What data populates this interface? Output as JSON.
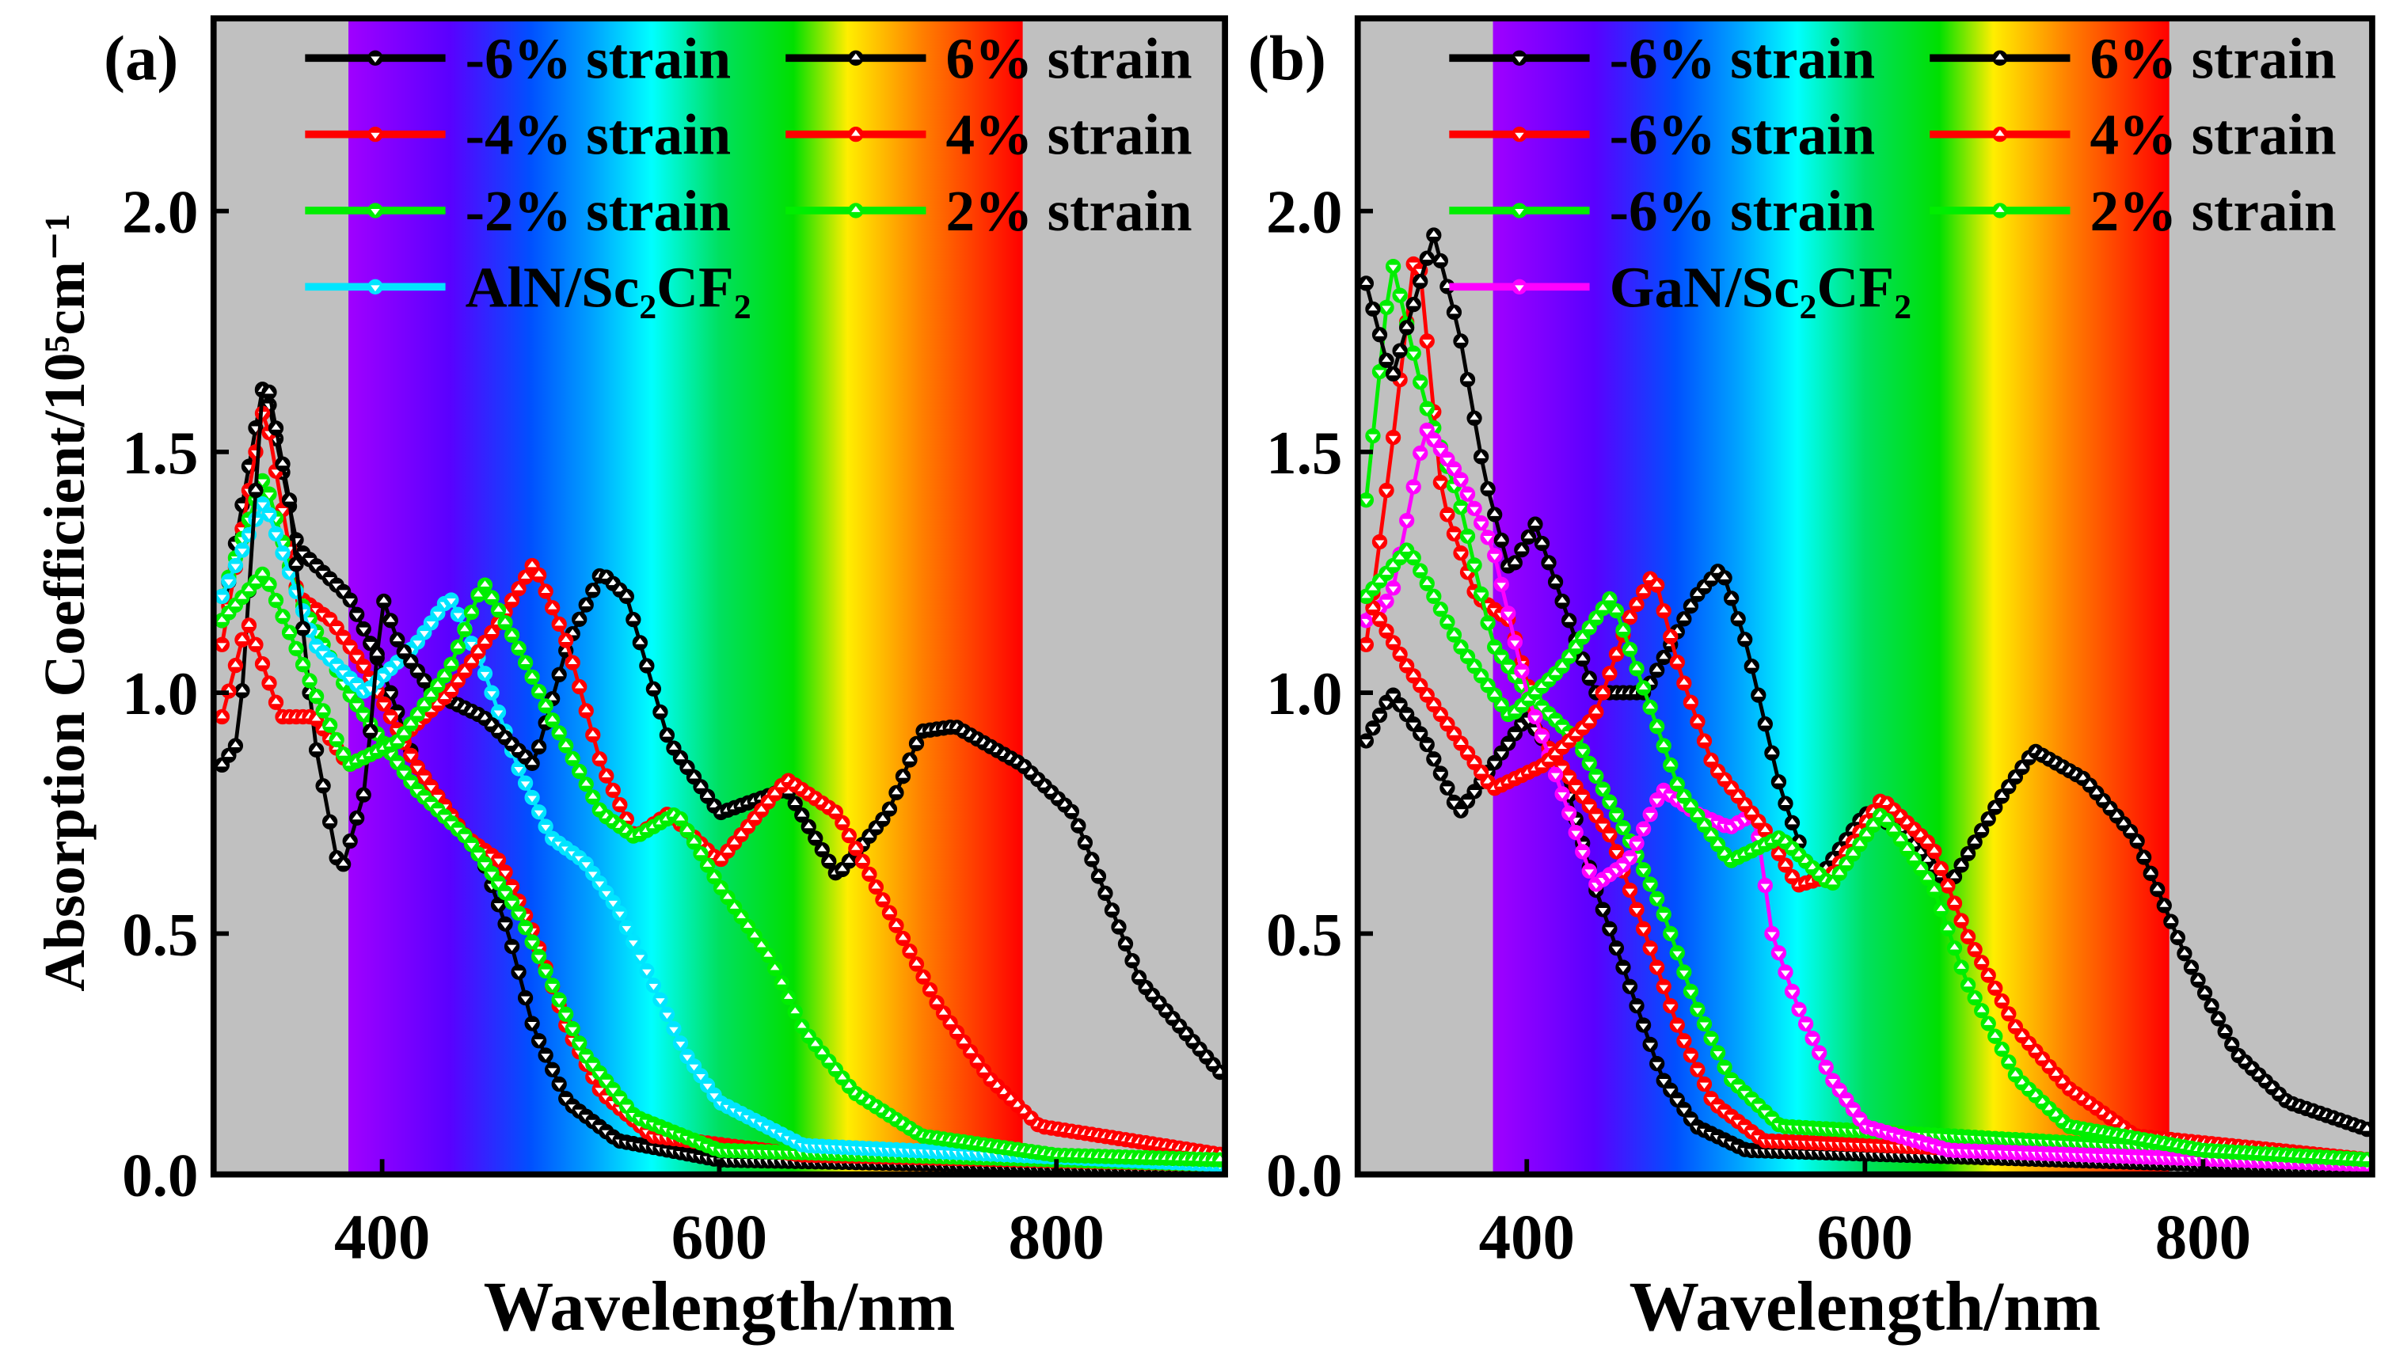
{
  "chart_data": [
    {
      "type": "line",
      "panel_label": "(a)",
      "xlabel": "Wavelength/nm",
      "ylabel": "Absorption Coefficient/10⁵cm⁻¹",
      "xlim": [
        300,
        900
      ],
      "ylim": [
        0,
        2.4
      ],
      "xticks": [
        "400",
        "600",
        "800"
      ],
      "xtick_values": [
        400,
        600,
        800
      ],
      "yticks": [
        "0.0",
        "0.5",
        "1.0",
        "1.5",
        "2.0"
      ],
      "ytick_values": [
        0,
        0.5,
        1.0,
        1.5,
        2.0
      ],
      "visible_band_nm": [
        380,
        780
      ],
      "legend_placement": "top",
      "series": [
        {
          "name": "-6% strain",
          "color": "#000000",
          "col": 0,
          "row": 0,
          "points": [
            [
              305,
              1.15
            ],
            [
              330,
              1.65
            ],
            [
              350,
              1.3
            ],
            [
              380,
              1.2
            ],
            [
              400,
              1.05
            ],
            [
              420,
              0.85
            ],
            [
              440,
              0.75
            ],
            [
              460,
              0.65
            ],
            [
              475,
              0.5
            ],
            [
              490,
              0.3
            ],
            [
              510,
              0.15
            ],
            [
              540,
              0.07
            ],
            [
              600,
              0.03
            ],
            [
              900,
              0.01
            ]
          ]
        },
        {
          "name": "-4% strain",
          "color": "#ff0000",
          "col": 0,
          "row": 1,
          "points": [
            [
              305,
              1.1
            ],
            [
              330,
              1.6
            ],
            [
              350,
              1.2
            ],
            [
              370,
              1.15
            ],
            [
              390,
              1.05
            ],
            [
              420,
              0.85
            ],
            [
              450,
              0.7
            ],
            [
              470,
              0.65
            ],
            [
              490,
              0.5
            ],
            [
              510,
              0.3
            ],
            [
              530,
              0.17
            ],
            [
              560,
              0.08
            ],
            [
              650,
              0.04
            ],
            [
              900,
              0.02
            ]
          ]
        },
        {
          "name": "-2% strain",
          "color": "#00ee00",
          "col": 0,
          "row": 2,
          "points": [
            [
              305,
              1.2
            ],
            [
              330,
              1.45
            ],
            [
              350,
              1.2
            ],
            [
              380,
              1.0
            ],
            [
              400,
              0.9
            ],
            [
              420,
              0.8
            ],
            [
              450,
              0.7
            ],
            [
              480,
              0.55
            ],
            [
              500,
              0.4
            ],
            [
              520,
              0.25
            ],
            [
              550,
              0.12
            ],
            [
              600,
              0.05
            ],
            [
              900,
              0.02
            ]
          ]
        },
        {
          "name": "AlN/Sc₂CF₂",
          "color": "#00e5ff",
          "col": 0,
          "row": 3,
          "points": [
            [
              305,
              1.2
            ],
            [
              330,
              1.4
            ],
            [
              360,
              1.1
            ],
            [
              390,
              1.0
            ],
            [
              420,
              1.1
            ],
            [
              440,
              1.2
            ],
            [
              460,
              1.05
            ],
            [
              480,
              0.85
            ],
            [
              500,
              0.7
            ],
            [
              520,
              0.65
            ],
            [
              540,
              0.55
            ],
            [
              560,
              0.4
            ],
            [
              580,
              0.25
            ],
            [
              600,
              0.15
            ],
            [
              650,
              0.06
            ],
            [
              900,
              0.02
            ]
          ]
        },
        {
          "name": "6% strain",
          "color": "#000000",
          "col": 1,
          "row": 0,
          "points": [
            [
              305,
              0.85
            ],
            [
              315,
              0.9
            ],
            [
              330,
              1.68
            ],
            [
              345,
              1.4
            ],
            [
              360,
              0.9
            ],
            [
              375,
              0.62
            ],
            [
              390,
              0.8
            ],
            [
              400,
              1.2
            ],
            [
              410,
              1.1
            ],
            [
              430,
              1.0
            ],
            [
              460,
              0.95
            ],
            [
              490,
              0.85
            ],
            [
              510,
              1.1
            ],
            [
              530,
              1.25
            ],
            [
              545,
              1.2
            ],
            [
              570,
              0.9
            ],
            [
              600,
              0.75
            ],
            [
              640,
              0.8
            ],
            [
              670,
              0.62
            ],
            [
              700,
              0.75
            ],
            [
              720,
              0.92
            ],
            [
              740,
              0.93
            ],
            [
              780,
              0.85
            ],
            [
              810,
              0.75
            ],
            [
              850,
              0.4
            ],
            [
              900,
              0.2
            ]
          ]
        },
        {
          "name": "4% strain",
          "color": "#ff0000",
          "col": 1,
          "row": 1,
          "points": [
            [
              305,
              0.95
            ],
            [
              320,
              1.15
            ],
            [
              340,
              0.95
            ],
            [
              360,
              0.95
            ],
            [
              380,
              0.85
            ],
            [
              410,
              0.9
            ],
            [
              440,
              1.0
            ],
            [
              470,
              1.15
            ],
            [
              490,
              1.27
            ],
            [
              510,
              1.1
            ],
            [
              530,
              0.85
            ],
            [
              550,
              0.7
            ],
            [
              570,
              0.75
            ],
            [
              600,
              0.65
            ],
            [
              640,
              0.82
            ],
            [
              670,
              0.75
            ],
            [
              700,
              0.55
            ],
            [
              730,
              0.35
            ],
            [
              760,
              0.2
            ],
            [
              790,
              0.1
            ],
            [
              900,
              0.04
            ]
          ]
        },
        {
          "name": "2% strain",
          "color": "#00ee00",
          "col": 1,
          "row": 2,
          "points": [
            [
              305,
              1.15
            ],
            [
              330,
              1.25
            ],
            [
              360,
              1.0
            ],
            [
              380,
              0.85
            ],
            [
              410,
              0.9
            ],
            [
              440,
              1.05
            ],
            [
              460,
              1.23
            ],
            [
              480,
              1.1
            ],
            [
              500,
              0.95
            ],
            [
              530,
              0.75
            ],
            [
              550,
              0.7
            ],
            [
              575,
              0.75
            ],
            [
              600,
              0.6
            ],
            [
              630,
              0.45
            ],
            [
              650,
              0.3
            ],
            [
              680,
              0.17
            ],
            [
              720,
              0.08
            ],
            [
              800,
              0.04
            ],
            [
              900,
              0.03
            ]
          ]
        }
      ]
    },
    {
      "type": "line",
      "panel_label": "(b)",
      "xlabel": "Wavelength/nm",
      "xlim": [
        300,
        900
      ],
      "ylim": [
        0,
        2.4
      ],
      "xticks": [
        "400",
        "600",
        "800"
      ],
      "xtick_values": [
        400,
        600,
        800
      ],
      "yticks": [
        "0.0",
        "0.5",
        "1.0",
        "1.5",
        "2.0"
      ],
      "ytick_values": [
        0,
        0.5,
        1.0,
        1.5,
        2.0
      ],
      "visible_band_nm": [
        380,
        780
      ],
      "legend_placement": "top",
      "series": [
        {
          "name": "-6% strain",
          "color": "#000000",
          "col": 0,
          "row": 0,
          "points": [
            [
              305,
              0.9
            ],
            [
              320,
              1.0
            ],
            [
              340,
              0.9
            ],
            [
              360,
              0.75
            ],
            [
              380,
              0.85
            ],
            [
              400,
              0.95
            ],
            [
              420,
              0.85
            ],
            [
              440,
              0.6
            ],
            [
              460,
              0.4
            ],
            [
              480,
              0.2
            ],
            [
              500,
              0.1
            ],
            [
              530,
              0.05
            ],
            [
              900,
              0.01
            ]
          ]
        },
        {
          "name": "-6% strain",
          "color": "#ff0000",
          "col": 0,
          "row": 1,
          "points": [
            [
              305,
              1.1
            ],
            [
              320,
              1.5
            ],
            [
              335,
              1.95
            ],
            [
              350,
              1.4
            ],
            [
              370,
              1.2
            ],
            [
              390,
              1.15
            ],
            [
              410,
              0.9
            ],
            [
              430,
              0.8
            ],
            [
              450,
              0.7
            ],
            [
              470,
              0.5
            ],
            [
              490,
              0.3
            ],
            [
              510,
              0.15
            ],
            [
              540,
              0.07
            ],
            [
              900,
              0.02
            ]
          ]
        },
        {
          "name": "-6% strain",
          "color": "#00ee00",
          "col": 0,
          "row": 2,
          "points": [
            [
              305,
              1.4
            ],
            [
              320,
              1.9
            ],
            [
              340,
              1.6
            ],
            [
              360,
              1.4
            ],
            [
              380,
              1.1
            ],
            [
              400,
              1.0
            ],
            [
              430,
              0.9
            ],
            [
              460,
              0.7
            ],
            [
              480,
              0.55
            ],
            [
              500,
              0.35
            ],
            [
              520,
              0.2
            ],
            [
              550,
              0.1
            ],
            [
              900,
              0.03
            ]
          ]
        },
        {
          "name": "GaN/Sc₂CF₂",
          "color": "#ff00ff",
          "col": 0,
          "row": 3,
          "points": [
            [
              305,
              1.15
            ],
            [
              320,
              1.2
            ],
            [
              340,
              1.55
            ],
            [
              360,
              1.45
            ],
            [
              380,
              1.3
            ],
            [
              400,
              1.0
            ],
            [
              420,
              0.8
            ],
            [
              440,
              0.6
            ],
            [
              460,
              0.65
            ],
            [
              480,
              0.8
            ],
            [
              500,
              0.75
            ],
            [
              520,
              0.72
            ],
            [
              535,
              0.75
            ],
            [
              545,
              0.5
            ],
            [
              560,
              0.35
            ],
            [
              580,
              0.2
            ],
            [
              600,
              0.1
            ],
            [
              650,
              0.05
            ],
            [
              900,
              0.02
            ]
          ]
        },
        {
          "name": "6% strain",
          "color": "#000000",
          "col": 1,
          "row": 0,
          "points": [
            [
              305,
              1.85
            ],
            [
              320,
              1.65
            ],
            [
              345,
              1.95
            ],
            [
              360,
              1.75
            ],
            [
              375,
              1.45
            ],
            [
              390,
              1.25
            ],
            [
              405,
              1.35
            ],
            [
              420,
              1.2
            ],
            [
              440,
              1.0
            ],
            [
              470,
              1.0
            ],
            [
              500,
              1.2
            ],
            [
              515,
              1.26
            ],
            [
              530,
              1.1
            ],
            [
              550,
              0.8
            ],
            [
              570,
              0.6
            ],
            [
              600,
              0.75
            ],
            [
              620,
              0.72
            ],
            [
              650,
              0.6
            ],
            [
              680,
              0.78
            ],
            [
              700,
              0.88
            ],
            [
              730,
              0.82
            ],
            [
              760,
              0.7
            ],
            [
              790,
              0.45
            ],
            [
              820,
              0.25
            ],
            [
              850,
              0.15
            ],
            [
              900,
              0.09
            ]
          ]
        },
        {
          "name": "4% strain",
          "color": "#ff0000",
          "col": 1,
          "row": 1,
          "points": [
            [
              305,
              1.2
            ],
            [
              330,
              1.05
            ],
            [
              350,
              0.95
            ],
            [
              380,
              0.8
            ],
            [
              410,
              0.85
            ],
            [
              440,
              0.95
            ],
            [
              460,
              1.15
            ],
            [
              475,
              1.25
            ],
            [
              490,
              1.05
            ],
            [
              510,
              0.85
            ],
            [
              540,
              0.72
            ],
            [
              560,
              0.6
            ],
            [
              580,
              0.62
            ],
            [
              610,
              0.78
            ],
            [
              640,
              0.68
            ],
            [
              660,
              0.5
            ],
            [
              690,
              0.3
            ],
            [
              720,
              0.18
            ],
            [
              760,
              0.08
            ],
            [
              900,
              0.03
            ]
          ]
        },
        {
          "name": "2% strain",
          "color": "#00ee00",
          "col": 1,
          "row": 2,
          "points": [
            [
              305,
              1.2
            ],
            [
              330,
              1.3
            ],
            [
              360,
              1.1
            ],
            [
              390,
              0.95
            ],
            [
              420,
              1.05
            ],
            [
              450,
              1.2
            ],
            [
              470,
              1.0
            ],
            [
              490,
              0.8
            ],
            [
              520,
              0.65
            ],
            [
              550,
              0.7
            ],
            [
              580,
              0.6
            ],
            [
              610,
              0.75
            ],
            [
              640,
              0.6
            ],
            [
              660,
              0.4
            ],
            [
              690,
              0.2
            ],
            [
              720,
              0.1
            ],
            [
              800,
              0.05
            ],
            [
              900,
              0.03
            ]
          ]
        }
      ]
    }
  ]
}
